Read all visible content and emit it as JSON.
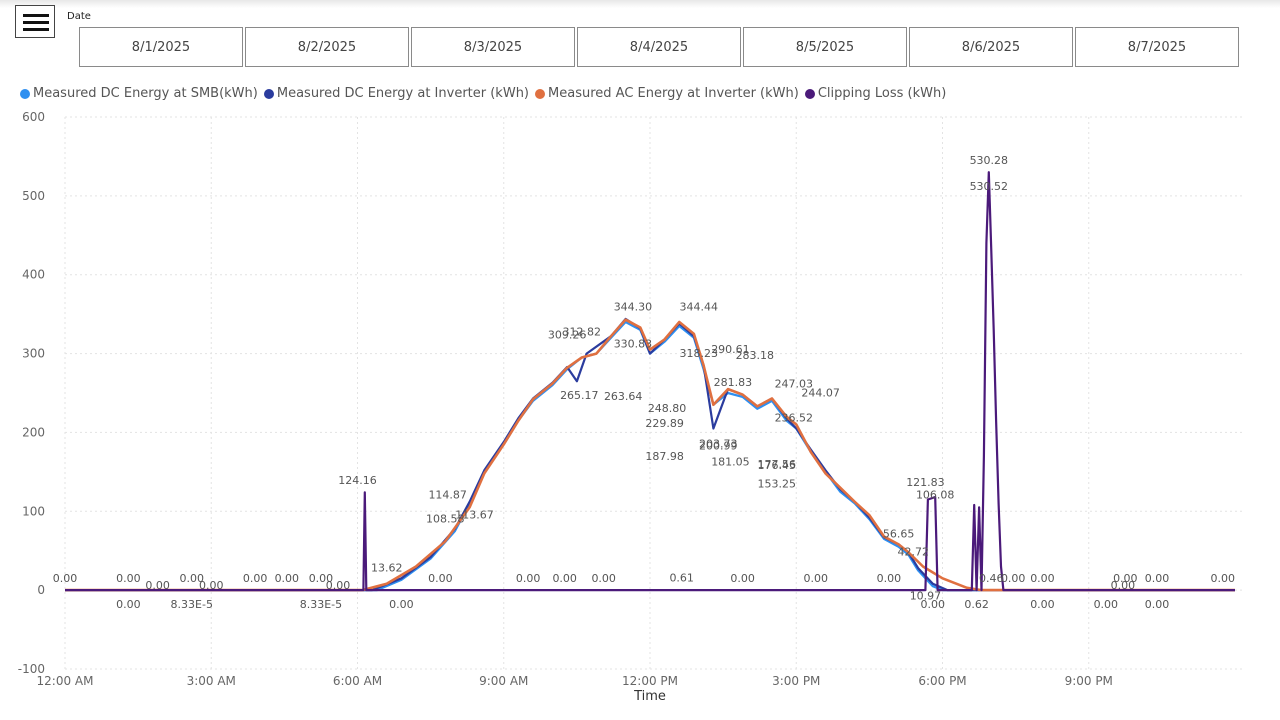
{
  "slicer": {
    "title": "Date",
    "dates": [
      "8/1/2025",
      "8/2/2025",
      "8/3/2025",
      "8/4/2025",
      "8/5/2025",
      "8/6/2025",
      "8/7/2025"
    ]
  },
  "chart_data": {
    "type": "line",
    "xlabel": "Time",
    "ylabel": "",
    "ylim": [
      -100,
      600
    ],
    "xlim_hours": [
      0,
      24
    ],
    "grid": true,
    "legend_position": "top-left",
    "y_ticks": [
      "600",
      "500",
      "400",
      "300",
      "200",
      "100",
      "0",
      "-100"
    ],
    "x_ticks": [
      "12:00 AM",
      "3:00 AM",
      "6:00 AM",
      "9:00 AM",
      "12:00 PM",
      "3:00 PM",
      "6:00 PM",
      "9:00 PM"
    ],
    "series": [
      {
        "name": "Measured DC Energy at SMB(kWh)",
        "color": "#2e8ff0",
        "points": [
          [
            0,
            0
          ],
          [
            6.4,
            0
          ],
          [
            6.9,
            13
          ],
          [
            7.5,
            40
          ],
          [
            8,
            75
          ],
          [
            8.3,
            110
          ],
          [
            8.6,
            150
          ],
          [
            9,
            185
          ],
          [
            9.3,
            215
          ],
          [
            9.6,
            240
          ],
          [
            10,
            260
          ],
          [
            10.3,
            280
          ],
          [
            10.6,
            295
          ],
          [
            10.9,
            300
          ],
          [
            11.2,
            320
          ],
          [
            11.5,
            340
          ],
          [
            11.8,
            330
          ],
          [
            12,
            300
          ],
          [
            12.3,
            315
          ],
          [
            12.6,
            335
          ],
          [
            12.9,
            320
          ],
          [
            13.1,
            280
          ],
          [
            13.3,
            235
          ],
          [
            13.6,
            250
          ],
          [
            13.9,
            245
          ],
          [
            14.2,
            230
          ],
          [
            14.5,
            240
          ],
          [
            14.8,
            215
          ],
          [
            15,
            205
          ],
          [
            15.3,
            175
          ],
          [
            15.6,
            150
          ],
          [
            15.9,
            125
          ],
          [
            16.2,
            110
          ],
          [
            16.5,
            90
          ],
          [
            16.8,
            65
          ],
          [
            17.1,
            55
          ],
          [
            17.3,
            45
          ],
          [
            17.5,
            25
          ],
          [
            17.8,
            5
          ],
          [
            18.0,
            0
          ],
          [
            24,
            0
          ]
        ]
      },
      {
        "name": "Measured DC Energy at Inverter (kWh)",
        "color": "#2b3c9e",
        "points": [
          [
            0,
            0
          ],
          [
            6.3,
            0
          ],
          [
            6.9,
            15
          ],
          [
            7.5,
            42
          ],
          [
            8,
            78
          ],
          [
            8.3,
            112
          ],
          [
            8.6,
            152
          ],
          [
            9,
            188
          ],
          [
            9.3,
            218
          ],
          [
            9.6,
            243
          ],
          [
            10,
            263
          ],
          [
            10.3,
            283
          ],
          [
            10.5,
            265
          ],
          [
            10.7,
            300
          ],
          [
            11.2,
            322
          ],
          [
            11.5,
            344
          ],
          [
            11.8,
            332
          ],
          [
            12,
            300
          ],
          [
            12.3,
            318
          ],
          [
            12.6,
            338
          ],
          [
            12.9,
            322
          ],
          [
            13.1,
            285
          ],
          [
            13.3,
            205
          ],
          [
            13.6,
            255
          ],
          [
            13.9,
            248
          ],
          [
            14.2,
            233
          ],
          [
            14.5,
            243
          ],
          [
            14.8,
            218
          ],
          [
            15,
            205
          ],
          [
            15.3,
            178
          ],
          [
            15.6,
            152
          ],
          [
            15.9,
            128
          ],
          [
            16.2,
            112
          ],
          [
            16.5,
            92
          ],
          [
            16.8,
            67
          ],
          [
            17.1,
            58
          ],
          [
            17.3,
            48
          ],
          [
            17.5,
            28
          ],
          [
            17.8,
            8
          ],
          [
            18.1,
            0
          ],
          [
            24,
            0
          ]
        ]
      },
      {
        "name": "Measured AC Energy at Inverter (kWh)",
        "color": "#e07040",
        "points": [
          [
            0,
            0
          ],
          [
            6.1,
            0
          ],
          [
            6.6,
            8
          ],
          [
            7.2,
            30
          ],
          [
            7.8,
            62
          ],
          [
            8.3,
            105
          ],
          [
            8.6,
            148
          ],
          [
            9,
            185
          ],
          [
            9.3,
            215
          ],
          [
            9.6,
            242
          ],
          [
            10,
            262
          ],
          [
            10.3,
            282
          ],
          [
            10.6,
            295
          ],
          [
            10.9,
            300
          ],
          [
            11.2,
            322
          ],
          [
            11.5,
            343
          ],
          [
            11.8,
            333
          ],
          [
            12,
            305
          ],
          [
            12.3,
            318
          ],
          [
            12.6,
            340
          ],
          [
            12.9,
            325
          ],
          [
            13.1,
            285
          ],
          [
            13.3,
            235
          ],
          [
            13.6,
            255
          ],
          [
            13.9,
            248
          ],
          [
            14.2,
            233
          ],
          [
            14.5,
            243
          ],
          [
            14.8,
            220
          ],
          [
            15,
            210
          ],
          [
            15.3,
            175
          ],
          [
            15.6,
            148
          ],
          [
            15.9,
            130
          ],
          [
            16.2,
            112
          ],
          [
            16.5,
            95
          ],
          [
            16.8,
            68
          ],
          [
            17.1,
            58
          ],
          [
            17.3,
            48
          ],
          [
            17.6,
            30
          ],
          [
            18,
            15
          ],
          [
            18.5,
            3
          ],
          [
            18.8,
            0
          ],
          [
            24,
            0
          ]
        ]
      },
      {
        "name": "Clipping Loss (kWh)",
        "color": "#4b1a7a",
        "points": [
          [
            0,
            0
          ],
          [
            6.12,
            0
          ],
          [
            6.15,
            124
          ],
          [
            6.18,
            0
          ],
          [
            17.65,
            0
          ],
          [
            17.7,
            115
          ],
          [
            17.85,
            118
          ],
          [
            17.9,
            0
          ],
          [
            18.6,
            0
          ],
          [
            18.65,
            108
          ],
          [
            18.7,
            0
          ],
          [
            18.75,
            105
          ],
          [
            18.8,
            0
          ],
          [
            18.85,
            170
          ],
          [
            18.9,
            440
          ],
          [
            18.95,
            530
          ],
          [
            19.0,
            430
          ],
          [
            19.05,
            330
          ],
          [
            19.1,
            215
          ],
          [
            19.15,
            110
          ],
          [
            19.2,
            30
          ],
          [
            19.25,
            0
          ],
          [
            24,
            0
          ]
        ]
      }
    ],
    "data_labels": [
      {
        "text": "0.00",
        "x": 0.0,
        "y": 0,
        "pos": "above"
      },
      {
        "text": "0.00",
        "x": 1.3,
        "y": 0,
        "pos": "above"
      },
      {
        "text": "0.00",
        "x": 1.3,
        "y": 0,
        "pos": "below"
      },
      {
        "text": "0.00",
        "x": 1.9,
        "y": 0,
        "pos": "on"
      },
      {
        "text": "0.00",
        "x": 2.6,
        "y": 0,
        "pos": "above"
      },
      {
        "text": "8.33E-5",
        "x": 2.6,
        "y": 0,
        "pos": "below"
      },
      {
        "text": "0.00",
        "x": 3.0,
        "y": 0,
        "pos": "on"
      },
      {
        "text": "0.00",
        "x": 3.9,
        "y": 0,
        "pos": "above"
      },
      {
        "text": "0.00",
        "x": 4.55,
        "y": 0,
        "pos": "above"
      },
      {
        "text": "0.00",
        "x": 5.25,
        "y": 0,
        "pos": "above"
      },
      {
        "text": "8.33E-5",
        "x": 5.25,
        "y": 0,
        "pos": "below"
      },
      {
        "text": "0.00",
        "x": 5.6,
        "y": 0,
        "pos": "on"
      },
      {
        "text": "124.16",
        "x": 6.0,
        "y": 124.16,
        "pos": "above"
      },
      {
        "text": "13.62",
        "x": 6.6,
        "y": 13.62,
        "pos": "above"
      },
      {
        "text": "0.00",
        "x": 6.9,
        "y": 0,
        "pos": "below"
      },
      {
        "text": "0.00",
        "x": 7.7,
        "y": 0,
        "pos": "above"
      },
      {
        "text": "114.87",
        "x": 7.85,
        "y": 114.87,
        "pos": "on"
      },
      {
        "text": "113.67",
        "x": 8.4,
        "y": 113.67,
        "pos": "below"
      },
      {
        "text": "108.58",
        "x": 7.8,
        "y": 108.58,
        "pos": "below"
      },
      {
        "text": "0.00",
        "x": 9.5,
        "y": 0,
        "pos": "above"
      },
      {
        "text": "0.00",
        "x": 10.25,
        "y": 0,
        "pos": "above"
      },
      {
        "text": "0.00",
        "x": 11.05,
        "y": 0,
        "pos": "above"
      },
      {
        "text": "312.82",
        "x": 10.6,
        "y": 312.82,
        "pos": "above"
      },
      {
        "text": "309.26",
        "x": 10.3,
        "y": 309.26,
        "pos": "above"
      },
      {
        "text": "265.17",
        "x": 10.55,
        "y": 265.17,
        "pos": "below"
      },
      {
        "text": "263.64",
        "x": 11.45,
        "y": 263.64,
        "pos": "below"
      },
      {
        "text": "344.30",
        "x": 11.65,
        "y": 344.3,
        "pos": "above"
      },
      {
        "text": "330.83",
        "x": 11.65,
        "y": 330.83,
        "pos": "below"
      },
      {
        "text": "248.80",
        "x": 12.35,
        "y": 248.8,
        "pos": "below"
      },
      {
        "text": "229.89",
        "x": 12.3,
        "y": 229.89,
        "pos": "below"
      },
      {
        "text": "187.98",
        "x": 12.3,
        "y": 187.98,
        "pos": "below"
      },
      {
        "text": "0.61",
        "x": 12.65,
        "y": 0.61,
        "pos": "above"
      },
      {
        "text": "344.44",
        "x": 13.0,
        "y": 344.44,
        "pos": "above"
      },
      {
        "text": "318.23",
        "x": 13.0,
        "y": 318.23,
        "pos": "below"
      },
      {
        "text": "290.61",
        "x": 13.65,
        "y": 290.61,
        "pos": "above"
      },
      {
        "text": "283.18",
        "x": 14.15,
        "y": 283.18,
        "pos": "above"
      },
      {
        "text": "281.83",
        "x": 13.7,
        "y": 281.83,
        "pos": "below"
      },
      {
        "text": "203.73",
        "x": 13.4,
        "y": 203.73,
        "pos": "below"
      },
      {
        "text": "200.99",
        "x": 13.4,
        "y": 200.99,
        "pos": "below"
      },
      {
        "text": "181.05",
        "x": 13.65,
        "y": 181.05,
        "pos": "below"
      },
      {
        "text": "0.00",
        "x": 13.9,
        "y": 0,
        "pos": "above"
      },
      {
        "text": "247.03",
        "x": 14.95,
        "y": 247.03,
        "pos": "above"
      },
      {
        "text": "244.07",
        "x": 15.5,
        "y": 244.07,
        "pos": "on"
      },
      {
        "text": "236.52",
        "x": 14.95,
        "y": 236.52,
        "pos": "below"
      },
      {
        "text": "176.45",
        "x": 14.6,
        "y": 176.45,
        "pos": "below"
      },
      {
        "text": "177.56",
        "x": 14.6,
        "y": 177.56,
        "pos": "below"
      },
      {
        "text": "153.25",
        "x": 14.6,
        "y": 153.25,
        "pos": "below"
      },
      {
        "text": "0.00",
        "x": 15.4,
        "y": 0,
        "pos": "above"
      },
      {
        "text": "0.00",
        "x": 16.9,
        "y": 0,
        "pos": "above"
      },
      {
        "text": "56.65",
        "x": 17.1,
        "y": 56.65,
        "pos": "above"
      },
      {
        "text": "42.72",
        "x": 17.4,
        "y": 42.72,
        "pos": "on"
      },
      {
        "text": "121.83",
        "x": 17.65,
        "y": 121.83,
        "pos": "above"
      },
      {
        "text": "106.08",
        "x": 17.85,
        "y": 106.08,
        "pos": "above"
      },
      {
        "text": "10.97",
        "x": 17.65,
        "y": 10.97,
        "pos": "below"
      },
      {
        "text": "0.00",
        "x": 17.8,
        "y": 0,
        "pos": "below"
      },
      {
        "text": "530.28",
        "x": 18.95,
        "y": 530.28,
        "pos": "above"
      },
      {
        "text": "530.52",
        "x": 18.95,
        "y": 530.52,
        "pos": "below"
      },
      {
        "text": "0.46",
        "x": 19.0,
        "y": 0.46,
        "pos": "above"
      },
      {
        "text": "0.62",
        "x": 18.7,
        "y": 0,
        "pos": "below"
      },
      {
        "text": "0.00",
        "x": 19.45,
        "y": 0,
        "pos": "above"
      },
      {
        "text": "0.00",
        "x": 20.05,
        "y": 0,
        "pos": "above"
      },
      {
        "text": "0.00",
        "x": 20.05,
        "y": 0,
        "pos": "below"
      },
      {
        "text": "0.00",
        "x": 21.75,
        "y": 0,
        "pos": "above"
      },
      {
        "text": "0.00",
        "x": 21.7,
        "y": 0,
        "pos": "on"
      },
      {
        "text": "0.00",
        "x": 21.35,
        "y": 0,
        "pos": "below"
      },
      {
        "text": "0.00",
        "x": 22.4,
        "y": 0,
        "pos": "above"
      },
      {
        "text": "0.00",
        "x": 22.4,
        "y": 0,
        "pos": "below"
      },
      {
        "text": "0.00",
        "x": 24.0,
        "y": 0,
        "pos": "above"
      }
    ]
  }
}
